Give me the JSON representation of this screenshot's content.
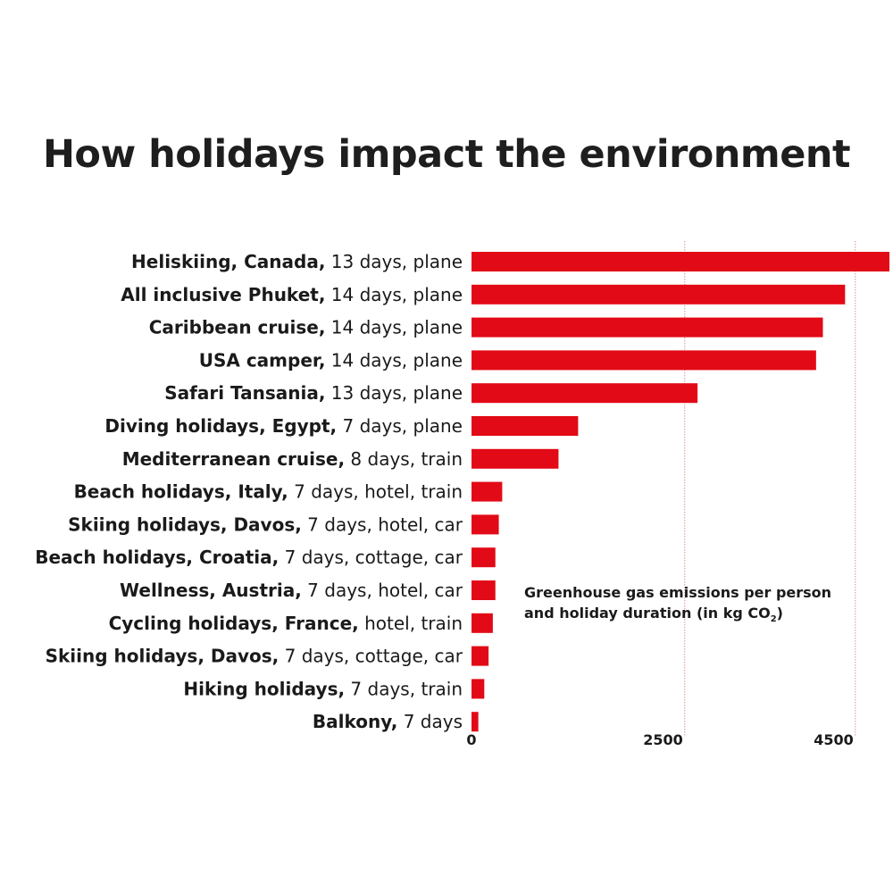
{
  "chart_data": {
    "type": "bar",
    "orientation": "horizontal",
    "title": "How holidays impact the environment",
    "subtitle": "",
    "xlabel": "",
    "ylabel": "",
    "annotation": {
      "line1": "Greenhouse gas emissions per person",
      "line2_prefix": "and holiday duration (in kg CO",
      "line2_sub": "2",
      "line2_suffix": ")"
    },
    "categories": [
      {
        "bold": "Heliskiing, Canada,",
        "rest": " 13 days, plane"
      },
      {
        "bold": "All inclusive Phuket,",
        "rest": " 14 days, plane"
      },
      {
        "bold": "Caribbean cruise,",
        "rest": " 14 days, plane"
      },
      {
        "bold": "USA camper,",
        "rest": " 14 days, plane"
      },
      {
        "bold": "Safari Tansania,",
        "rest": " 13 days, plane"
      },
      {
        "bold": "Diving holidays, Egypt,",
        "rest": " 7 days, plane"
      },
      {
        "bold": "Mediterranean cruise,",
        "rest": " 8 days, train"
      },
      {
        "bold": "Beach holidays, Italy,",
        "rest": " 7 days, hotel, train"
      },
      {
        "bold": "Skiing holidays, Davos,",
        "rest": " 7 days, hotel, car"
      },
      {
        "bold": "Beach holidays, Croatia,",
        "rest": " 7 days, cottage, car"
      },
      {
        "bold": "Wellness, Austria,",
        "rest": " 7 days, hotel, car"
      },
      {
        "bold": "Cycling holidays, France,",
        "rest": " hotel, train"
      },
      {
        "bold": "Skiing holidays, Davos,",
        "rest": " 7 days, cottage, car"
      },
      {
        "bold": "Hiking holidays,",
        "rest": " 7 days, train"
      },
      {
        "bold": "Balkony,",
        "rest": " 7 days"
      }
    ],
    "values": [
      4900,
      4380,
      4120,
      4040,
      2650,
      1250,
      1020,
      360,
      320,
      280,
      280,
      250,
      200,
      150,
      80
    ],
    "ticks": [
      0,
      2500,
      4500
    ],
    "xlim": [
      0,
      4900
    ],
    "gridlines": [
      2500,
      4500
    ],
    "grid": true,
    "legend": "none",
    "colors": {
      "bar": "#e20a16",
      "grid": "#e58a8f",
      "text": "#1a1a1a"
    }
  }
}
